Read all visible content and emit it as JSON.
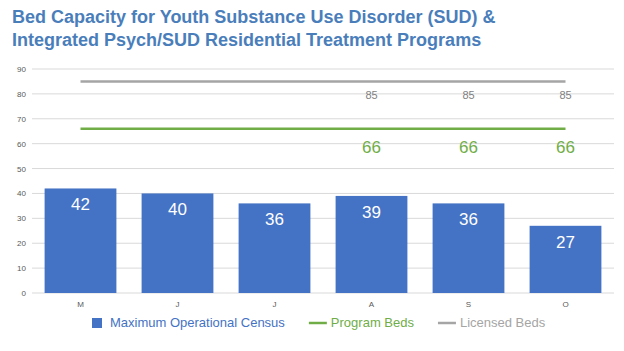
{
  "chart_data": {
    "type": "bar",
    "title": "Bed Capacity for Youth Substance Use Disorder (SUD) & Integrated Psych/SUD Residential Treatment Programs",
    "categories": [
      "M",
      "J",
      "J",
      "A",
      "S",
      "O"
    ],
    "series": [
      {
        "name": "Maximum Operational Census",
        "type": "bar",
        "color": "#4472c4",
        "values": [
          42,
          40,
          36,
          39,
          36,
          27
        ]
      },
      {
        "name": "Program Beds",
        "type": "line",
        "color": "#70ad47",
        "values": [
          66,
          66,
          66,
          66,
          66,
          66
        ],
        "value_labels": [
          null,
          null,
          null,
          "66",
          "66",
          "66"
        ]
      },
      {
        "name": "Licensed Beds",
        "type": "line",
        "color": "#a5a5a5",
        "values": [
          85,
          85,
          85,
          85,
          85,
          85
        ],
        "value_labels": [
          null,
          null,
          null,
          "85",
          "85",
          "85"
        ]
      }
    ],
    "ylim": [
      0,
      90
    ],
    "yticks": [
      0,
      10,
      20,
      30,
      40,
      50,
      60,
      70,
      80,
      90
    ],
    "grid": true,
    "legend": "bottom",
    "data_labels": true
  }
}
